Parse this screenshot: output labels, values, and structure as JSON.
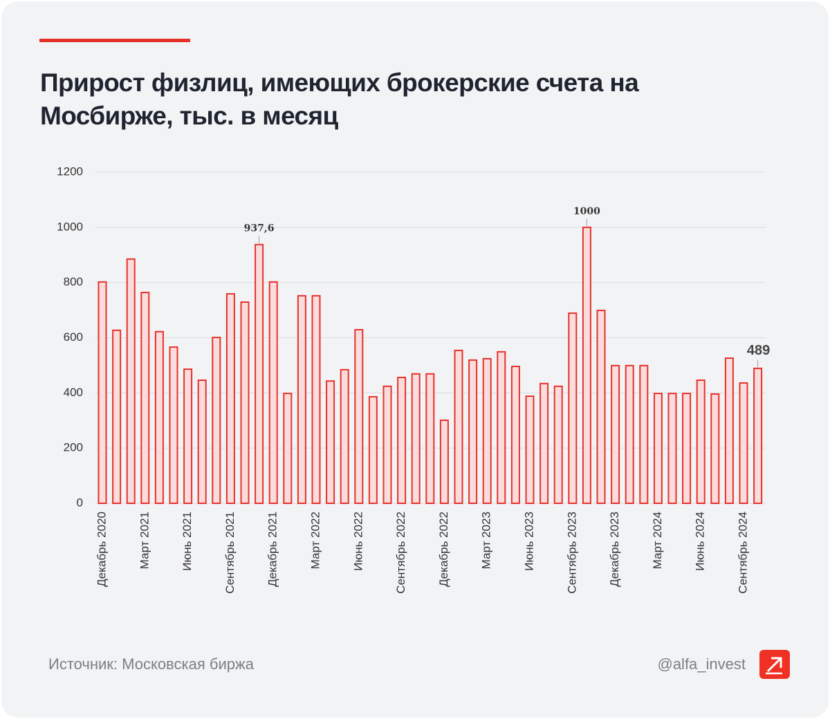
{
  "chart_data": {
    "type": "bar",
    "title": "Прирост физлиц, имеющих брокерские счета на Мосбирже, тыс. в месяц",
    "categories": [
      "Декабрь 2020",
      null,
      null,
      "Март 2021",
      null,
      null,
      "Июнь 2021",
      null,
      null,
      "Сентябрь 2021",
      null,
      null,
      "Декабрь 2021",
      null,
      null,
      "Март 2022",
      null,
      null,
      "Июнь 2022",
      null,
      null,
      "Сентябрь 2022",
      null,
      null,
      "Декабрь 2022",
      null,
      null,
      "Март 2023",
      null,
      null,
      "Июнь 2023",
      null,
      null,
      "Сентябрь 2023",
      null,
      null,
      "Декабрь 2023",
      null,
      null,
      "Март 2024",
      null,
      null,
      "Июнь 2024",
      null,
      null,
      "Сентябрь 2024",
      null
    ],
    "values": [
      802,
      627,
      885,
      764,
      622,
      566,
      486,
      446,
      601,
      759,
      729,
      937.6,
      802,
      398,
      752,
      752,
      443,
      484,
      629,
      386,
      424,
      456,
      469,
      469,
      301,
      554,
      519,
      524,
      549,
      496,
      388,
      434,
      424,
      689,
      1000,
      699,
      499,
      499,
      499,
      398,
      398,
      398,
      446,
      396,
      526,
      436,
      489
    ],
    "value_labels": [
      null,
      null,
      null,
      null,
      null,
      null,
      null,
      null,
      null,
      null,
      null,
      "937,6",
      null,
      null,
      null,
      null,
      null,
      null,
      null,
      null,
      null,
      null,
      null,
      null,
      null,
      null,
      null,
      null,
      null,
      null,
      null,
      null,
      null,
      null,
      "1000",
      null,
      null,
      null,
      null,
      null,
      null,
      null,
      null,
      null,
      null,
      null,
      "489"
    ],
    "color": "#e8302a",
    "ylim": [
      0,
      1200
    ],
    "yticks": [
      0,
      200,
      400,
      600,
      800,
      1000,
      1200
    ],
    "grid": true,
    "source": "Источник: Московская биржа",
    "handle": "@alfa_invest"
  }
}
